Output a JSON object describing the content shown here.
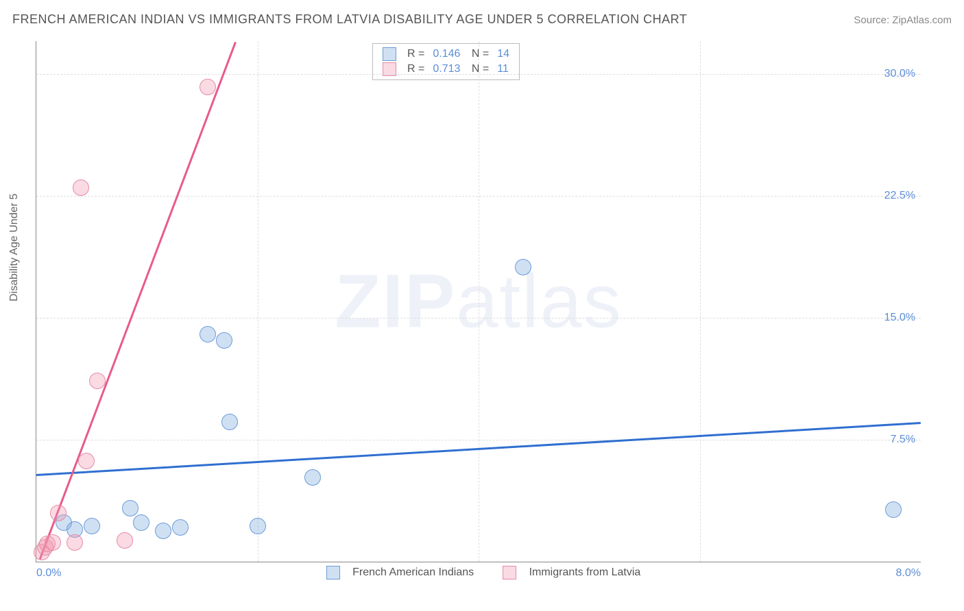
{
  "title": "FRENCH AMERICAN INDIAN VS IMMIGRANTS FROM LATVIA DISABILITY AGE UNDER 5 CORRELATION CHART",
  "source_label": "Source: ",
  "source_link": "ZipAtlas.com",
  "y_axis_label": "Disability Age Under 5",
  "watermark_prefix": "ZIP",
  "watermark_suffix": "atlas",
  "chart": {
    "type": "scatter",
    "xlim": [
      0,
      8
    ],
    "ylim": [
      0,
      32
    ],
    "x_ticks": [
      0,
      2,
      4,
      6,
      8
    ],
    "x_tick_labels": {
      "0": "0.0%",
      "8": "8.0%"
    },
    "y_ticks": [
      7.5,
      15.0,
      22.5,
      30.0
    ],
    "y_tick_labels": [
      "7.5%",
      "15.0%",
      "22.5%",
      "30.0%"
    ],
    "grid_color": "#dddddd",
    "background_color": "#ffffff",
    "axis_color": "#888888",
    "point_radius": 11,
    "point_border_width": 1,
    "series": [
      {
        "name": "French American Indians",
        "fill_color": "rgba(120,165,220,0.35)",
        "border_color": "#6a9bd8",
        "trend_color": "#2f6fd0",
        "trend_width": 2.5,
        "R": "0.146",
        "N": "14",
        "trend": {
          "x1": 0,
          "y1": 5.4,
          "x2": 8,
          "y2": 8.6
        },
        "points": [
          {
            "x": 0.25,
            "y": 2.4
          },
          {
            "x": 0.35,
            "y": 2.0
          },
          {
            "x": 0.5,
            "y": 2.2
          },
          {
            "x": 0.85,
            "y": 3.3
          },
          {
            "x": 0.95,
            "y": 2.4
          },
          {
            "x": 1.15,
            "y": 1.9
          },
          {
            "x": 1.3,
            "y": 2.1
          },
          {
            "x": 1.55,
            "y": 14.0
          },
          {
            "x": 1.7,
            "y": 13.6
          },
          {
            "x": 1.75,
            "y": 8.6
          },
          {
            "x": 2.0,
            "y": 2.2
          },
          {
            "x": 2.5,
            "y": 5.2
          },
          {
            "x": 4.4,
            "y": 18.1
          },
          {
            "x": 7.75,
            "y": 3.2
          }
        ]
      },
      {
        "name": "Immigrants from Latvia",
        "fill_color": "rgba(240,150,175,0.35)",
        "border_color": "#e78aa5",
        "trend_color": "#e85a8c",
        "trend_width": 2.5,
        "R": "0.713",
        "N": "11",
        "trend": {
          "x1": 0.03,
          "y1": 0.2,
          "x2": 1.8,
          "y2": 32.0
        },
        "points": [
          {
            "x": 0.05,
            "y": 0.6
          },
          {
            "x": 0.08,
            "y": 0.9
          },
          {
            "x": 0.1,
            "y": 1.1
          },
          {
            "x": 0.15,
            "y": 1.2
          },
          {
            "x": 0.2,
            "y": 3.0
          },
          {
            "x": 0.35,
            "y": 1.2
          },
          {
            "x": 0.45,
            "y": 6.2
          },
          {
            "x": 0.4,
            "y": 23.0
          },
          {
            "x": 0.55,
            "y": 11.1
          },
          {
            "x": 0.8,
            "y": 1.3
          },
          {
            "x": 1.55,
            "y": 29.2
          }
        ]
      }
    ]
  },
  "legend": {
    "r_label": "R = ",
    "n_label": "N = "
  }
}
